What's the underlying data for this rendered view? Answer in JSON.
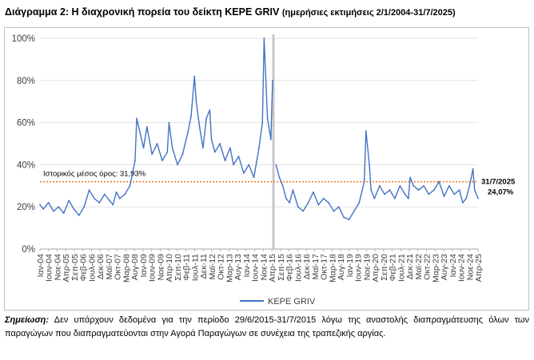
{
  "title": "Διάγραμμα 2: Η διαχρονική πορεία του δείκτη ΚΕΡΕ GRIV",
  "subtitle": "(ημερήσιες εκτιμήσεις 2/1/2004-31/7/2025)",
  "chart_data": {
    "type": "line",
    "title": "Διάγραμμα 2: Η διαχρονική πορεία του δείκτη ΚΕΡΕ GRIV (ημερήσιες εκτιμήσεις 2/1/2004-31/7/2025)",
    "xlabel": "",
    "ylabel": "",
    "ylim": [
      0,
      100
    ],
    "yticks": [
      "0%",
      "20%",
      "40%",
      "60%",
      "80%",
      "100%"
    ],
    "x_tick_labels": [
      "Ιαν-04",
      "Ιουν-04",
      "Νοε-04",
      "Απρ-05",
      "Σεπ-05",
      "Φεβ-06",
      "Ιουλ-06",
      "Δεκ-06",
      "Μαϊ-07",
      "Οκτ-07",
      "Μαρ-08",
      "Αυγ-08",
      "Ιαν-09",
      "Ιουν-09",
      "Νοε-09",
      "Απρ-10",
      "Σεπ-10",
      "Φεβ-11",
      "Ιουλ-11",
      "Δεκ-11",
      "Μαϊ-12",
      "Οκτ-12",
      "Μαρ-13",
      "Αυγ-13",
      "Ιαν-14",
      "Ιουν-14",
      "Νοε-14",
      "Απρ-15",
      "Σεπ-15",
      "Φεβ-16",
      "Ιουλ-16",
      "Δεκ-16",
      "Μαϊ-17",
      "Οκτ-17",
      "Μαρ-18",
      "Αυγ-18",
      "Ιαν-19",
      "Ιουν-19",
      "Νοε-19",
      "Απρ-20",
      "Σεπ-20",
      "Φεβ-21",
      "Ιουλ-21",
      "Δεκ-21",
      "Μαϊ-22",
      "Οκτ-22",
      "Μαρ-23",
      "Αυγ-23",
      "Ιαν-24",
      "Ιουν-24",
      "Νοε-24",
      "Απρ-25"
    ],
    "series": [
      {
        "name": "ΚΕΡΕ GRIV",
        "color": "#4472c4",
        "x": [
          "2004-01",
          "2004-03",
          "2004-06",
          "2004-09",
          "2004-12",
          "2005-03",
          "2005-06",
          "2005-09",
          "2005-12",
          "2006-03",
          "2006-06",
          "2006-09",
          "2006-12",
          "2007-03",
          "2007-06",
          "2007-08",
          "2007-10",
          "2007-12",
          "2008-03",
          "2008-06",
          "2008-09",
          "2008-10",
          "2008-12",
          "2009-02",
          "2009-04",
          "2009-07",
          "2009-10",
          "2010-01",
          "2010-04",
          "2010-05",
          "2010-07",
          "2010-10",
          "2011-01",
          "2011-04",
          "2011-06",
          "2011-08",
          "2011-09",
          "2011-11",
          "2012-01",
          "2012-03",
          "2012-05",
          "2012-06",
          "2012-08",
          "2012-11",
          "2013-02",
          "2013-05",
          "2013-07",
          "2013-10",
          "2014-01",
          "2014-04",
          "2014-07",
          "2014-10",
          "2014-12",
          "2015-01",
          "2015-03",
          "2015-05",
          "2015-06",
          "2015-08",
          "2015-10",
          "2015-12",
          "2016-02",
          "2016-04",
          "2016-06",
          "2016-09",
          "2016-12",
          "2017-03",
          "2017-06",
          "2017-09",
          "2017-12",
          "2018-03",
          "2018-06",
          "2018-09",
          "2018-12",
          "2019-03",
          "2019-06",
          "2019-09",
          "2019-12",
          "2020-01",
          "2020-03",
          "2020-04",
          "2020-06",
          "2020-09",
          "2020-12",
          "2021-03",
          "2021-06",
          "2021-09",
          "2021-12",
          "2022-02",
          "2022-03",
          "2022-05",
          "2022-08",
          "2022-11",
          "2023-02",
          "2023-05",
          "2023-08",
          "2023-11",
          "2024-02",
          "2024-05",
          "2024-08",
          "2024-10",
          "2024-12",
          "2025-02",
          "2025-04",
          "2025-05",
          "2025-07"
        ],
        "values": [
          21,
          19,
          22,
          18,
          20,
          17,
          23,
          19,
          16,
          20,
          28,
          24,
          22,
          26,
          23,
          21,
          27,
          24,
          26,
          30,
          42,
          62,
          55,
          48,
          58,
          45,
          50,
          42,
          46,
          60,
          48,
          40,
          45,
          55,
          63,
          82,
          70,
          58,
          48,
          62,
          66,
          52,
          46,
          50,
          42,
          48,
          40,
          44,
          36,
          40,
          34,
          48,
          60,
          100,
          62,
          52,
          80,
          40,
          34,
          30,
          24,
          22,
          28,
          20,
          18,
          22,
          27,
          21,
          24,
          22,
          18,
          20,
          15,
          14,
          18,
          22,
          32,
          56,
          40,
          28,
          24,
          30,
          26,
          28,
          24,
          30,
          26,
          24,
          34,
          30,
          28,
          30,
          26,
          28,
          32,
          25,
          30,
          26,
          28,
          22,
          24,
          30,
          38,
          28,
          24.07
        ]
      }
    ],
    "reference_line": {
      "value": 31.93,
      "label": "Ιστορικός μέσος όρος: 31,93%",
      "color": "#ed7d31"
    },
    "gap_marker": {
      "from": "2015-06",
      "to": "2015-07"
    },
    "end_annotation": {
      "date_label": "31/7/2025",
      "value_label": "24,07%"
    },
    "legend": "bottom-center"
  },
  "note": {
    "label": "Σημείωση:",
    "text": "Δεν υπάρχουν δεδομένα για την περίοδο 29/6/2015-31/7/2015 λόγω της αναστολής διαπραγμάτευσης όλων των παραγώγων που διαπραγματεύονται στην Αγορά Παραγώγων σε συνέχεια της τραπεζικής αργίας."
  }
}
